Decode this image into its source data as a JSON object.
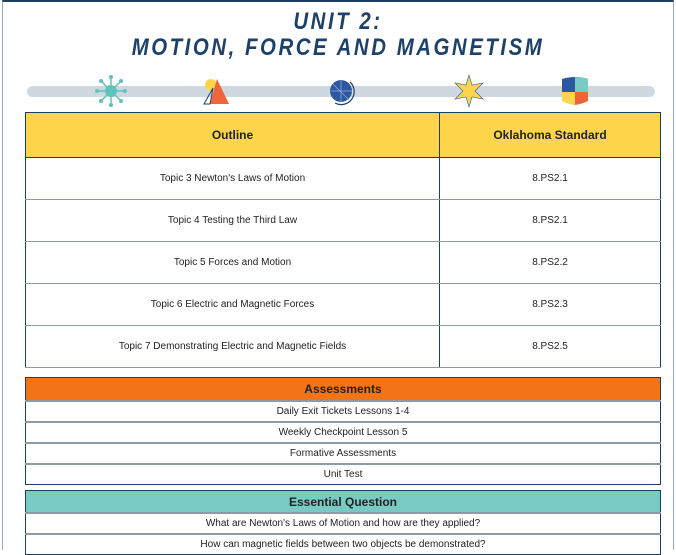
{
  "title": {
    "line1": "UNIT 2:",
    "line2": "MOTION, FORCE AND MAGNETISM"
  },
  "icons": [
    "network-icon",
    "triangle-sun-icon",
    "globe-icon",
    "star-icon",
    "shield-icon"
  ],
  "outline": {
    "headers": [
      "Outline",
      "Oklahoma Standard"
    ],
    "rows": [
      [
        "Topic 3 Newton's Laws of Motion",
        "8.PS2.1"
      ],
      [
        "Topic 4 Testing the Third Law",
        "8.PS2.1"
      ],
      [
        "Topic 5 Forces and Motion",
        "8.PS2.2"
      ],
      [
        "Topic 6 Electric and Magnetic Forces",
        "8.PS2.3"
      ],
      [
        "Topic 7 Demonstrating Electric and Magnetic Fields",
        "8.PS2.5"
      ]
    ]
  },
  "assessments": {
    "header": "Assessments",
    "items": [
      "Daily Exit Tickets Lessons 1-4",
      "Weekly Checkpoint Lesson 5",
      "Formative Assessments",
      "Unit Test"
    ]
  },
  "essential": {
    "header": "Essential Question",
    "items": [
      "What are Newton's Laws of Motion and how are they applied?",
      "How can magnetic fields between two objects be demonstrated?"
    ]
  },
  "colors": {
    "title": "#1d4168",
    "outline_header": "#fdd54a",
    "assessments_header": "#f17417",
    "essential_header": "#77cbc3"
  }
}
